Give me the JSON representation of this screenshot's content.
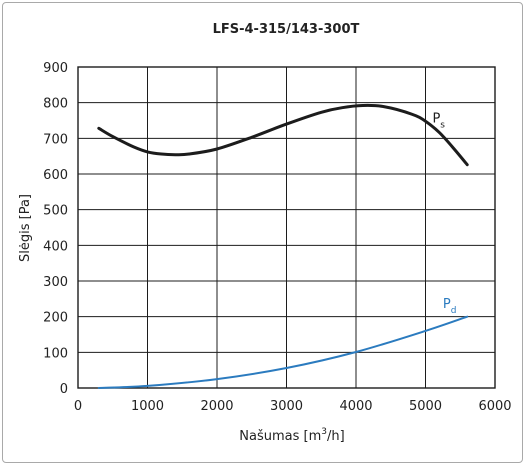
{
  "chart_data": {
    "type": "line",
    "title": "LFS-4-315/143-300T",
    "xlabel": {
      "main": "Našumas [m",
      "sup": "3",
      "tail": "/h]"
    },
    "ylabel": "Slėgis [Pa]",
    "xlim": [
      0,
      6000
    ],
    "ylim": [
      0,
      900
    ],
    "xticks": [
      0,
      1000,
      2000,
      3000,
      4000,
      5000,
      6000
    ],
    "yticks": [
      0,
      100,
      200,
      300,
      400,
      500,
      600,
      700,
      800,
      900
    ],
    "grid": true,
    "series": [
      {
        "name": "P",
        "sub": "s",
        "color": "#1c1c1c",
        "x": [
          300,
          500,
          800,
          1000,
          1200,
          1400,
          1600,
          2000,
          2500,
          3000,
          3500,
          3800,
          4100,
          4400,
          4800,
          5000,
          5200,
          5400,
          5600
        ],
        "y": [
          728,
          705,
          676,
          662,
          656,
          654,
          656,
          670,
          703,
          740,
          773,
          786,
          792,
          789,
          768,
          748,
          716,
          673,
          626
        ]
      },
      {
        "name": "P",
        "sub": "d",
        "color": "#2b7bbf",
        "x": [
          300,
          1000,
          2000,
          3000,
          4000,
          5000,
          5600
        ],
        "y": [
          0,
          6,
          25,
          56,
          101,
          160,
          200
        ]
      }
    ],
    "series_label_pos": [
      {
        "x": 5100,
        "y": 745
      },
      {
        "x": 5250,
        "y": 225
      }
    ]
  }
}
